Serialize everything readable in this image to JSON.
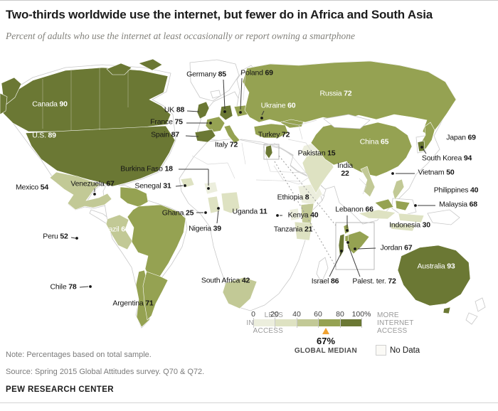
{
  "header": {
    "title": "Two-thirds worldwide use the internet, but fewer do in Africa and South Asia",
    "subtitle": "Percent of adults who use the internet at least occasionally or report owning a smartphone"
  },
  "map": {
    "countries": [
      {
        "id": "canada",
        "name": "Canada",
        "value": 90
      },
      {
        "id": "us",
        "name": "U.S.",
        "value": 89
      },
      {
        "id": "mexico",
        "name": "Mexico",
        "value": 54
      },
      {
        "id": "venezuela",
        "name": "Venezuela",
        "value": 67
      },
      {
        "id": "peru",
        "name": "Peru",
        "value": 52
      },
      {
        "id": "brazil",
        "name": "Brazil",
        "value": 60
      },
      {
        "id": "chile",
        "name": "Chile",
        "value": 78
      },
      {
        "id": "argentina",
        "name": "Argentina",
        "value": 71
      },
      {
        "id": "uk",
        "name": "UK",
        "value": 88
      },
      {
        "id": "france",
        "name": "France",
        "value": 75
      },
      {
        "id": "spain",
        "name": "Spain",
        "value": 87
      },
      {
        "id": "germany",
        "name": "Germany",
        "value": 85
      },
      {
        "id": "poland",
        "name": "Poland",
        "value": 69
      },
      {
        "id": "italy",
        "name": "Italy",
        "value": 72
      },
      {
        "id": "ukraine",
        "name": "Ukraine",
        "value": 60
      },
      {
        "id": "russia",
        "name": "Russia",
        "value": 72
      },
      {
        "id": "turkey",
        "name": "Turkey",
        "value": 72
      },
      {
        "id": "burkina",
        "name": "Burkina Faso",
        "value": 18
      },
      {
        "id": "senegal",
        "name": "Senegal",
        "value": 31
      },
      {
        "id": "ghana",
        "name": "Ghana",
        "value": 25
      },
      {
        "id": "nigeria",
        "name": "Nigeria",
        "value": 39
      },
      {
        "id": "ethiopia",
        "name": "Ethiopia",
        "value": 8
      },
      {
        "id": "uganda",
        "name": "Uganda",
        "value": 11
      },
      {
        "id": "kenya",
        "name": "Kenya",
        "value": 40
      },
      {
        "id": "tanzania",
        "name": "Tanzania",
        "value": 21
      },
      {
        "id": "southafrica",
        "name": "South Africa",
        "value": 42
      },
      {
        "id": "lebanon",
        "name": "Lebanon",
        "value": 66
      },
      {
        "id": "jordan",
        "name": "Jordan",
        "value": 67
      },
      {
        "id": "israel",
        "name": "Israel",
        "value": 86
      },
      {
        "id": "palest",
        "name": "Palest. ter.",
        "value": 72
      },
      {
        "id": "pakistan",
        "name": "Pakistan",
        "value": 15
      },
      {
        "id": "india",
        "name": "India",
        "value": 22
      },
      {
        "id": "china",
        "name": "China",
        "value": 65
      },
      {
        "id": "japan",
        "name": "Japan",
        "value": 69
      },
      {
        "id": "southkorea",
        "name": "South Korea",
        "value": 94
      },
      {
        "id": "vietnam",
        "name": "Vietnam",
        "value": 50
      },
      {
        "id": "philippines",
        "name": "Philippines",
        "value": 40
      },
      {
        "id": "malaysia",
        "name": "Malaysia",
        "value": 68
      },
      {
        "id": "indonesia",
        "name": "Indonesia",
        "value": 30
      },
      {
        "id": "australia",
        "name": "Australia",
        "value": 93
      }
    ]
  },
  "legend": {
    "less_label": "LESS INTERNET ACCESS",
    "more_label": "MORE INTERNET ACCESS",
    "ticks": [
      "0",
      "20",
      "40",
      "60",
      "80",
      "100%"
    ],
    "bucket_colors": [
      "#eceedd",
      "#dee2c2",
      "#c2c996",
      "#95a252",
      "#6b7834"
    ],
    "median_value": "67%",
    "median_label": "GLOBAL MEDIAN",
    "median_marker_color": "#f0a232",
    "no_data_label": "No Data"
  },
  "footer": {
    "note": "Note: Percentages based on total sample.",
    "source": "Source: Spring 2015 Global Attitudes survey. Q70 & Q72.",
    "brand": "PEW RESEARCH CENTER"
  }
}
